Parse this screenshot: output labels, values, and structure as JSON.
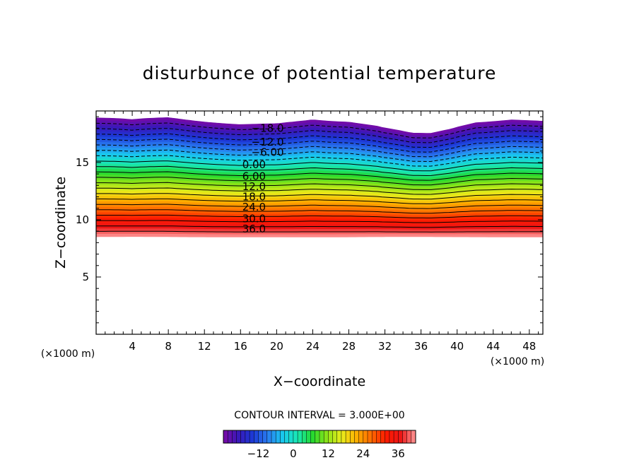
{
  "chart_data": {
    "type": "contour",
    "title": "disturbunce of potential temperature",
    "xlabel": "X−coordinate",
    "ylabel": "Z−coordinate",
    "x_unit": "(×1000 m)",
    "y_unit": "(×1000 m)",
    "xlim": [
      0,
      49.5
    ],
    "ylim": [
      0,
      19.5
    ],
    "x_ticks": [
      4,
      8,
      12,
      16,
      20,
      24,
      28,
      32,
      36,
      40,
      44,
      48
    ],
    "y_ticks": [
      5,
      10,
      15
    ],
    "contour_interval_text": "CONTOUR INTERVAL = 3.000E+00",
    "contour_interval": 3,
    "value_range": [
      -24,
      42
    ],
    "contour_labels": [
      {
        "text": "−18.0",
        "x": 19,
        "z": 18.0
      },
      {
        "text": "−12.0",
        "x": 19,
        "z": 16.8
      },
      {
        "text": "−6.00",
        "x": 19,
        "z": 15.9
      },
      {
        "text": "0.00",
        "x": 17.5,
        "z": 14.8
      },
      {
        "text": "6.00",
        "x": 17.5,
        "z": 13.8
      },
      {
        "text": "12.0",
        "x": 17.5,
        "z": 12.9
      },
      {
        "text": "18.0",
        "x": 17.5,
        "z": 12.0
      },
      {
        "text": "24.0",
        "x": 17.5,
        "z": 11.1
      },
      {
        "text": "30.0",
        "x": 17.5,
        "z": 10.1
      },
      {
        "text": "36.0",
        "x": 17.5,
        "z": 9.2
      }
    ],
    "field_bottom_z": 8.5,
    "top_boundary": [
      [
        0,
        18.8
      ],
      [
        4,
        18.5
      ],
      [
        8,
        18.8
      ],
      [
        12,
        18.6
      ],
      [
        16,
        18.4
      ],
      [
        20,
        18.5
      ],
      [
        24,
        18.9
      ],
      [
        28,
        18.6
      ],
      [
        32,
        17.9
      ],
      [
        35,
        17.4
      ],
      [
        37,
        17.4
      ],
      [
        39,
        17.8
      ],
      [
        42,
        18.5
      ],
      [
        46,
        18.8
      ],
      [
        49.5,
        18.7
      ]
    ],
    "colorbar": {
      "ticks": [
        "−12",
        "0",
        "12",
        "24",
        "36"
      ],
      "tick_values": [
        -12,
        0,
        12,
        24,
        36
      ],
      "colors": [
        "#7a0aa6",
        "#3a18b8",
        "#1c3ad8",
        "#2a7cf0",
        "#19c8ee",
        "#19e8b4",
        "#22d830",
        "#8ee418",
        "#e8ec1c",
        "#ffb000",
        "#ff6a00",
        "#ff1a00",
        "#ec1616",
        "#ff9a9a"
      ]
    }
  }
}
